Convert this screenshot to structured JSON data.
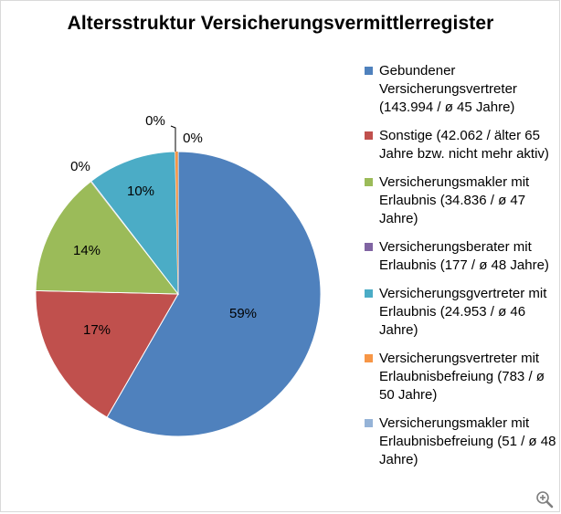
{
  "chart_data": {
    "type": "pie",
    "title": "Altersstruktur Versicherungsvermittlerregister",
    "legend_position": "right",
    "slices": [
      {
        "name": "Gebundener Versicherungsvertreter (143.994 / ø 45 Jahre)",
        "value": 143994,
        "label": "59%",
        "color": "#4f81bd"
      },
      {
        "name": "Sonstige (42.062 / älter 65 Jahre bzw. nicht mehr aktiv)",
        "value": 42062,
        "label": "17%",
        "color": "#c0504d"
      },
      {
        "name": "Versicherungsmakler mit Erlaubnis (34.836 / ø 47 Jahre)",
        "value": 34836,
        "label": "14%",
        "color": "#9bbb59"
      },
      {
        "name": "Versicherungsberater mit Erlaubnis (177 / ø 48 Jahre)",
        "value": 177,
        "label": "0%",
        "color": "#8064a2"
      },
      {
        "name": "Versicherungsgvertreter mit Erlaubnis (24.953 / ø 46 Jahre)",
        "value": 24953,
        "label": "10%",
        "color": "#4bacc6"
      },
      {
        "name": "Versicherungsvertreter mit Erlaubnisbefreiung  (783 / ø 50 Jahre)",
        "value": 783,
        "label": "0%",
        "color": "#f79646"
      },
      {
        "name": "Versicherungsmakler mit Erlaubnisbefreiung (51 / ø 48 Jahre)",
        "value": 51,
        "label": "0%",
        "color": "#95b3d7"
      }
    ]
  },
  "ui": {
    "zoom_icon": "zoom-in-icon"
  }
}
